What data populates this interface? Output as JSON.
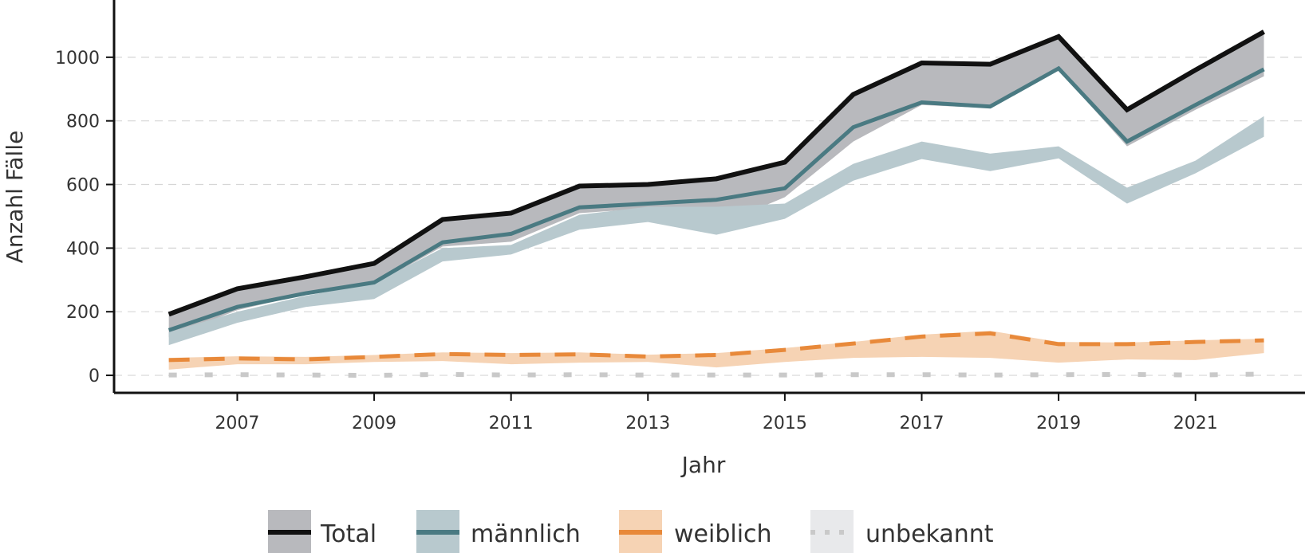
{
  "chart_data": {
    "type": "line",
    "title": "",
    "xlabel": "Jahr",
    "ylabel": "Anzahl Fälle",
    "xlim": [
      2005.2,
      2022.6
    ],
    "ylim": [
      -55,
      1180
    ],
    "x_ticks": [
      2007,
      2009,
      2011,
      2013,
      2015,
      2017,
      2019,
      2021
    ],
    "y_ticks": [
      0,
      200,
      400,
      600,
      800,
      1000
    ],
    "grid": "horizontal dashed",
    "legend_position": "bottom",
    "x": [
      2006,
      2007,
      2008,
      2009,
      2010,
      2011,
      2012,
      2013,
      2014,
      2015,
      2016,
      2017,
      2018,
      2019,
      2020,
      2021,
      2022
    ],
    "series": [
      {
        "name": "Total",
        "color": "#111111",
        "band_color": "#b8b9bd",
        "style": "solid",
        "values": [
          192,
          272,
          310,
          352,
          490,
          510,
          595,
          600,
          618,
          670,
          883,
          982,
          978,
          1065,
          835,
          960,
          1080
        ],
        "band_low": [
          120,
          205,
          255,
          285,
          405,
          420,
          510,
          525,
          470,
          560,
          735,
          850,
          840,
          960,
          720,
          835,
          940
        ],
        "band_high": [
          192,
          272,
          310,
          352,
          490,
          510,
          595,
          600,
          618,
          670,
          883,
          982,
          978,
          1065,
          835,
          960,
          1080
        ]
      },
      {
        "name": "männlich",
        "color": "#4a7a82",
        "band_color": "#b8c9ce",
        "style": "solid",
        "values": [
          142,
          215,
          258,
          292,
          418,
          445,
          528,
          540,
          552,
          588,
          780,
          858,
          845,
          965,
          735,
          850,
          962
        ],
        "band_low": [
          95,
          165,
          215,
          240,
          358,
          380,
          458,
          482,
          442,
          492,
          612,
          680,
          642,
          682,
          540,
          635,
          750
        ],
        "band_high": [
          135,
          200,
          250,
          290,
          400,
          410,
          505,
          530,
          530,
          540,
          665,
          735,
          697,
          720,
          590,
          675,
          815
        ]
      },
      {
        "name": "weiblich",
        "color": "#e8893a",
        "band_color": "#f6d3b4",
        "style": "dashed",
        "values": [
          48,
          53,
          50,
          58,
          67,
          64,
          66,
          59,
          64,
          80,
          100,
          122,
          132,
          98,
          98,
          105,
          110
        ],
        "band_low": [
          18,
          35,
          35,
          42,
          45,
          35,
          40,
          42,
          25,
          42,
          55,
          58,
          55,
          40,
          50,
          48,
          70
        ],
        "band_high": [
          55,
          60,
          58,
          64,
          72,
          70,
          72,
          65,
          70,
          86,
          105,
          128,
          140,
          105,
          103,
          110,
          115
        ]
      },
      {
        "name": "unbekannt",
        "color": "#c9c9c9",
        "band_color": "#e8e9eb",
        "style": "dotted",
        "values": [
          1,
          2,
          1,
          0,
          3,
          1,
          2,
          1,
          1,
          1,
          2,
          2,
          1,
          2,
          3,
          1,
          4
        ]
      }
    ]
  }
}
